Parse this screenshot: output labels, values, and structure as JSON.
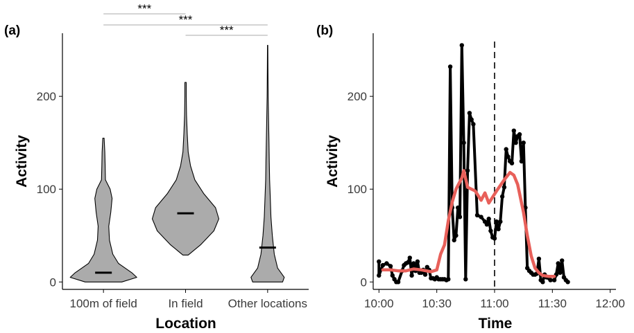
{
  "colors": {
    "violin_fill": "#ababab",
    "line_raw": "#000000",
    "line_smooth": "#e8605a",
    "bracket": "#aaaaaa"
  },
  "chart_data": [
    {
      "type": "violin",
      "panel_label": "(a)",
      "xlabel": "Location",
      "ylabel": "Activity",
      "categories": [
        "100m of field",
        "In field",
        "Other locations"
      ],
      "medians": [
        10,
        74,
        37
      ],
      "ranges": [
        [
          0,
          155
        ],
        [
          29,
          215
        ],
        [
          0,
          255
        ]
      ],
      "density_profiles": [
        [
          [
            0,
            0.55
          ],
          [
            5,
            1.0
          ],
          [
            10,
            0.85
          ],
          [
            20,
            0.45
          ],
          [
            30,
            0.28
          ],
          [
            45,
            0.18
          ],
          [
            60,
            0.16
          ],
          [
            75,
            0.22
          ],
          [
            90,
            0.26
          ],
          [
            100,
            0.2
          ],
          [
            110,
            0.06
          ],
          [
            125,
            0.05
          ],
          [
            140,
            0.04
          ],
          [
            155,
            0.02
          ]
        ],
        [
          [
            29,
            0.08
          ],
          [
            40,
            0.45
          ],
          [
            55,
            0.85
          ],
          [
            68,
            1.0
          ],
          [
            80,
            0.9
          ],
          [
            95,
            0.55
          ],
          [
            110,
            0.28
          ],
          [
            125,
            0.15
          ],
          [
            140,
            0.08
          ],
          [
            160,
            0.05
          ],
          [
            180,
            0.03
          ],
          [
            200,
            0.02
          ],
          [
            215,
            0.02
          ]
        ],
        [
          [
            0,
            0.45
          ],
          [
            5,
            0.5
          ],
          [
            15,
            0.3
          ],
          [
            30,
            0.2
          ],
          [
            50,
            0.14
          ],
          [
            70,
            0.1
          ],
          [
            90,
            0.08
          ],
          [
            110,
            0.06
          ],
          [
            130,
            0.05
          ],
          [
            150,
            0.04
          ],
          [
            170,
            0.03
          ],
          [
            200,
            0.015
          ],
          [
            230,
            0.01
          ],
          [
            255,
            0.005
          ]
        ]
      ],
      "yticks": [
        0,
        100,
        200
      ],
      "ylim": [
        -8,
        268
      ],
      "comparisons": [
        {
          "pair": [
            "100m of field",
            "In field"
          ],
          "label": "***"
        },
        {
          "pair": [
            "100m of field",
            "Other locations"
          ],
          "label": "***"
        },
        {
          "pair": [
            "In field",
            "Other locations"
          ],
          "label": "***"
        }
      ]
    },
    {
      "type": "line",
      "panel_label": "(b)",
      "xlabel": "Time",
      "ylabel": "Activity",
      "x_ticks": [
        "10:00",
        "10:30",
        "11:00",
        "11:30",
        "12:00"
      ],
      "x_tick_minutes": [
        0,
        30,
        60,
        90,
        120
      ],
      "yticks": [
        0,
        100,
        200
      ],
      "ylim": [
        -8,
        268
      ],
      "xlim": [
        -3,
        123
      ],
      "vline_minutes": 60,
      "series": [
        {
          "style": "raw",
          "points": [
            [
              0,
              22
            ],
            [
              0,
              7
            ],
            [
              2,
              18
            ],
            [
              4,
              20
            ],
            [
              6,
              17
            ],
            [
              7,
              7
            ],
            [
              8,
              3
            ],
            [
              9,
              0
            ],
            [
              10,
              0
            ],
            [
              12,
              12
            ],
            [
              13,
              18
            ],
            [
              14,
              20
            ],
            [
              15,
              21
            ],
            [
              16,
              26
            ],
            [
              17,
              7
            ],
            [
              18,
              20
            ],
            [
              19,
              12
            ],
            [
              20,
              22
            ],
            [
              21,
              10
            ],
            [
              22,
              10
            ],
            [
              23,
              13
            ],
            [
              24,
              8
            ],
            [
              25,
              16
            ],
            [
              26,
              13
            ],
            [
              27,
              4
            ],
            [
              28,
              4
            ],
            [
              29,
              3
            ],
            [
              30,
              5
            ],
            [
              31,
              3
            ],
            [
              32,
              3
            ],
            [
              33,
              3
            ],
            [
              34,
              3
            ],
            [
              35,
              2
            ],
            [
              36,
              3
            ],
            [
              37,
              232
            ],
            [
              38,
              80
            ],
            [
              39,
              45
            ],
            [
              40,
              50
            ],
            [
              41,
              80
            ],
            [
              42,
              70
            ],
            [
              43,
              255
            ],
            [
              44,
              150
            ],
            [
              45,
              3
            ],
            [
              46,
              120
            ],
            [
              47,
              182
            ],
            [
              48,
              175
            ],
            [
              49,
              170
            ],
            [
              51,
              72
            ],
            [
              53,
              70
            ],
            [
              55,
              65
            ],
            [
              56,
              62
            ],
            [
              57,
              68
            ],
            [
              58,
              55
            ],
            [
              59,
              48
            ],
            [
              60,
              47
            ],
            [
              61,
              65
            ],
            [
              62,
              57
            ],
            [
              63,
              65
            ],
            [
              64,
              92
            ],
            [
              65,
              102
            ],
            [
              66,
              143
            ],
            [
              67,
              135
            ],
            [
              68,
              130
            ],
            [
              69,
              128
            ],
            [
              70,
              163
            ],
            [
              71,
              150
            ],
            [
              72,
              157
            ],
            [
              73,
              159
            ],
            [
              74,
              130
            ],
            [
              75,
              150
            ],
            [
              76,
              80
            ],
            [
              77,
              15
            ],
            [
              78,
              12
            ],
            [
              79,
              10
            ],
            [
              80,
              8
            ],
            [
              81,
              8
            ],
            [
              82,
              9
            ],
            [
              83,
              25
            ],
            [
              84,
              2
            ],
            [
              85,
              0
            ],
            [
              86,
              8
            ],
            [
              87,
              5
            ],
            [
              89,
              2
            ],
            [
              91,
              2
            ],
            [
              92,
              8
            ],
            [
              93,
              20
            ],
            [
              94,
              10
            ],
            [
              95,
              23
            ],
            [
              96,
              5
            ],
            [
              97,
              2
            ],
            [
              98,
              0
            ]
          ]
        },
        {
          "style": "smooth",
          "points": [
            [
              2,
              13
            ],
            [
              6,
              13
            ],
            [
              10,
              12
            ],
            [
              14,
              12
            ],
            [
              18,
              14
            ],
            [
              22,
              13
            ],
            [
              27,
              11
            ],
            [
              30,
              13
            ],
            [
              32,
              30
            ],
            [
              34,
              40
            ],
            [
              36,
              66
            ],
            [
              38,
              86
            ],
            [
              40,
              100
            ],
            [
              43,
              112
            ],
            [
              44,
              120
            ],
            [
              46,
              102
            ],
            [
              50,
              98
            ],
            [
              53,
              88
            ],
            [
              55,
              96
            ],
            [
              57,
              85
            ],
            [
              61,
              98
            ],
            [
              65,
              110
            ],
            [
              68,
              118
            ],
            [
              70,
              115
            ],
            [
              72,
              105
            ],
            [
              75,
              75
            ],
            [
              77,
              50
            ],
            [
              79,
              28
            ],
            [
              81,
              15
            ],
            [
              83,
              10
            ],
            [
              85,
              7
            ],
            [
              88,
              6
            ],
            [
              91,
              6
            ]
          ]
        }
      ]
    }
  ]
}
